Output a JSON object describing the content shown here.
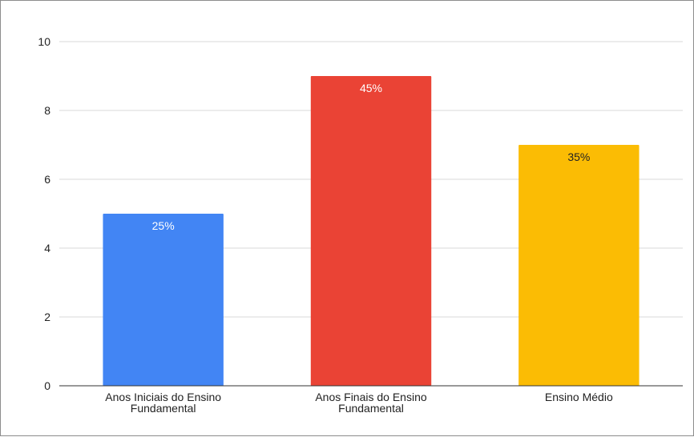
{
  "chart_data": {
    "type": "bar",
    "title": "",
    "xlabel": "",
    "ylabel": "",
    "categories": [
      [
        "Anos Iniciais do Ensino",
        "Fundamental"
      ],
      [
        "Anos Finais do Ensino",
        "Fundamental"
      ],
      [
        "Ensino Médio"
      ]
    ],
    "values": [
      5,
      9,
      7
    ],
    "data_labels": [
      "25%",
      "45%",
      "35%"
    ],
    "colors": [
      "#4285f4",
      "#ea4335",
      "#fbbc04"
    ],
    "label_colors": [
      "#ffffff",
      "#ffffff",
      "#222222"
    ],
    "ylim": [
      0,
      10
    ],
    "yticks": [
      "0",
      "2",
      "4",
      "6",
      "8",
      "10"
    ],
    "grid": true,
    "legend": "none"
  }
}
